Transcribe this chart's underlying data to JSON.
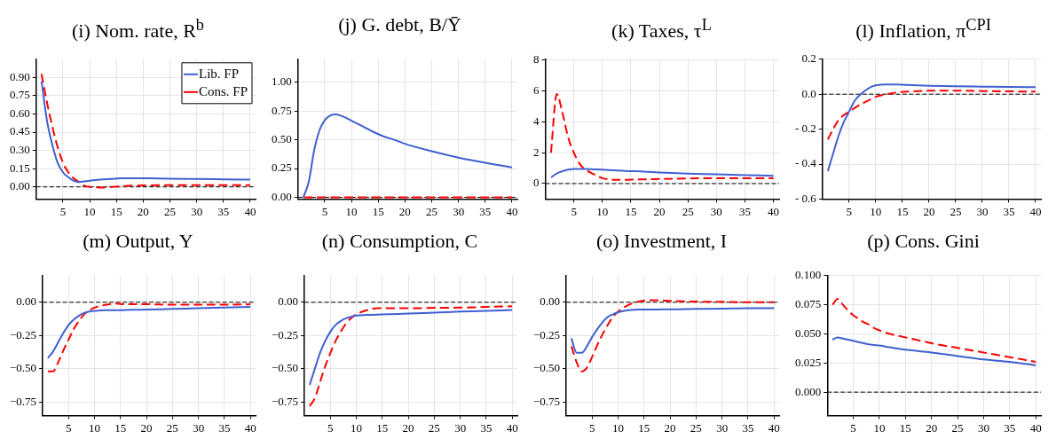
{
  "chart_data": [
    {
      "type": "line",
      "title": "(i) Nom. rate, R$^{b}$",
      "x": [
        1,
        2,
        3,
        4,
        5,
        6,
        7,
        8,
        9,
        10,
        12,
        14,
        16,
        18,
        20,
        25,
        30,
        35,
        40
      ],
      "xlim": [
        0,
        41
      ],
      "xticks": [
        5,
        10,
        15,
        20,
        25,
        30,
        35,
        40
      ],
      "ylim": [
        -0.1,
        1.05
      ],
      "yticks": [
        {
          "value": 0,
          "label": "0.00"
        },
        0.15,
        {
          "value": 0.3,
          "label": "0.30"
        },
        0.45,
        {
          "value": 0.6,
          "label": "0.60"
        },
        0.75,
        {
          "value": 0.9,
          "label": "0.90"
        }
      ],
      "grid": true,
      "legend": "top right",
      "marker": "none",
      "series": [
        {
          "name": "Lib. FP",
          "color": "#3f5fd0",
          "line_style": "solid",
          "values": [
            0.87,
            0.55,
            0.35,
            0.2,
            0.12,
            0.08,
            0.05,
            0.04,
            0.045,
            0.05,
            0.06,
            0.065,
            0.07,
            0.07,
            0.07,
            0.068,
            0.065,
            0.062,
            0.06
          ]
        },
        {
          "name": "Cons. FP",
          "color": "#ff0000",
          "line_style": "dashed",
          "values": [
            0.93,
            0.7,
            0.5,
            0.33,
            0.2,
            0.12,
            0.07,
            0.04,
            0.01,
            0.0,
            -0.005,
            0.0,
            0.005,
            0.01,
            0.012,
            0.015,
            0.015,
            0.015,
            0.015
          ]
        }
      ],
      "ref_lines": [
        {
          "axis": "y",
          "value": 0,
          "color": "#000000",
          "line_style": "dashed"
        }
      ]
    },
    {
      "type": "line",
      "title": "(j) G. debt, B/Ȳ",
      "x": [
        1,
        2,
        3,
        4,
        5,
        6,
        7,
        8,
        9,
        10,
        12,
        14,
        16,
        18,
        20,
        25,
        30,
        35,
        40
      ],
      "xlim": [
        0,
        41
      ],
      "xticks": [
        5,
        10,
        15,
        20,
        25,
        30,
        35,
        40
      ],
      "ylim": [
        -0.015,
        1.2
      ],
      "yticks": [
        {
          "value": 0,
          "label": "0.00"
        },
        0.25,
        {
          "value": 0.5,
          "label": "0.50"
        },
        0.75,
        {
          "value": 1,
          "label": "1.00"
        }
      ],
      "grid": true,
      "marker": "none",
      "series": [
        {
          "color": "#3f5fd0",
          "line_style": "solid",
          "values": [
            0,
            0.13,
            0.4,
            0.58,
            0.67,
            0.71,
            0.72,
            0.71,
            0.69,
            0.665,
            0.62,
            0.57,
            0.53,
            0.5,
            0.465,
            0.4,
            0.345,
            0.3,
            0.26
          ]
        },
        {
          "color": "#ff0000",
          "line_style": "dashed",
          "values": [
            0,
            0,
            0,
            0,
            0,
            0,
            0,
            0,
            0,
            0,
            0,
            0,
            0,
            0,
            0,
            0,
            0,
            0,
            0
          ]
        }
      ],
      "ref_lines": [
        {
          "axis": "y",
          "value": 0,
          "color": "#000000",
          "line_style": "dashed"
        }
      ]
    },
    {
      "type": "line",
      "title": "(k) Taxes, τ$^{L}$",
      "x": [
        1,
        2,
        3,
        4,
        5,
        6,
        7,
        8,
        9,
        10,
        12,
        14,
        16,
        18,
        20,
        25,
        30,
        35,
        40
      ],
      "xlim": [
        0,
        41
      ],
      "xticks": [
        5,
        10,
        15,
        20,
        25,
        30,
        35,
        40
      ],
      "ylim": [
        -1,
        8.05
      ],
      "yticks": [
        0,
        2,
        4,
        6,
        8
      ],
      "grid": true,
      "marker": "none",
      "series": [
        {
          "color": "#3f5fd0",
          "line_style": "solid",
          "values": [
            0.4,
            0.65,
            0.8,
            0.9,
            0.95,
            0.95,
            0.95,
            0.93,
            0.92,
            0.9,
            0.86,
            0.82,
            0.8,
            0.76,
            0.72,
            0.65,
            0.6,
            0.55,
            0.5
          ]
        },
        {
          "color": "#ff0000",
          "line_style": "dashed",
          "values": [
            2.0,
            5.8,
            4.6,
            3.0,
            2.0,
            1.3,
            0.9,
            0.7,
            0.5,
            0.35,
            0.25,
            0.25,
            0.27,
            0.28,
            0.3,
            0.33,
            0.35,
            0.35,
            0.35
          ]
        }
      ],
      "ref_lines": [
        {
          "axis": "y",
          "value": 0,
          "color": "#000000",
          "line_style": "dashed"
        }
      ]
    },
    {
      "type": "line",
      "title": "(l) Inflation, π$^{CPI}$",
      "x": [
        1,
        2,
        3,
        4,
        5,
        6,
        7,
        8,
        9,
        10,
        12,
        14,
        16,
        18,
        20,
        25,
        30,
        35,
        40
      ],
      "xlim": [
        0,
        41
      ],
      "xticks": [
        5,
        10,
        15,
        20,
        25,
        30,
        35,
        40
      ],
      "ylim": [
        -0.6,
        0.2
      ],
      "yticks": [
        {
          "value": -0.6,
          "label": "- 0.6"
        },
        {
          "value": -0.4,
          "label": "- 0.4"
        },
        {
          "value": -0.2,
          "label": "- 0.2"
        },
        {
          "value": 0,
          "label": "0.0"
        },
        0.2
      ],
      "grid": true,
      "marker": "none",
      "series": [
        {
          "color": "#3f5fd0",
          "line_style": "solid",
          "values": [
            -0.44,
            -0.34,
            -0.24,
            -0.16,
            -0.1,
            -0.04,
            -0.005,
            0.02,
            0.04,
            0.05,
            0.055,
            0.055,
            0.053,
            0.05,
            0.048,
            0.045,
            0.043,
            0.041,
            0.04
          ]
        },
        {
          "color": "#ff0000",
          "line_style": "dashed",
          "values": [
            -0.26,
            -0.2,
            -0.15,
            -0.12,
            -0.1,
            -0.08,
            -0.06,
            -0.045,
            -0.03,
            -0.015,
            0.0,
            0.01,
            0.015,
            0.018,
            0.02,
            0.02,
            0.018,
            0.016,
            0.015
          ]
        }
      ],
      "ref_lines": [
        {
          "axis": "y",
          "value": 0,
          "color": "#000000",
          "line_style": "dashed"
        }
      ]
    },
    {
      "type": "line",
      "title": "(m) Output, Y",
      "x": [
        1,
        2,
        3,
        4,
        5,
        6,
        7,
        8,
        9,
        10,
        12,
        14,
        16,
        18,
        20,
        25,
        30,
        35,
        40
      ],
      "xlim": [
        0,
        41
      ],
      "xticks": [
        5,
        10,
        15,
        20,
        25,
        30,
        35,
        40
      ],
      "ylim": [
        -0.85,
        0.2
      ],
      "yticks": [
        {
          "value": -0.75,
          "label": "−0.75"
        },
        {
          "value": -0.5,
          "label": "−0.50"
        },
        {
          "value": -0.25,
          "label": "−0.25"
        },
        {
          "value": 0,
          "label": "0.00"
        }
      ],
      "grid": true,
      "marker": "none",
      "series": [
        {
          "color": "#3f5fd0",
          "line_style": "solid",
          "values": [
            -0.42,
            -0.37,
            -0.3,
            -0.23,
            -0.17,
            -0.13,
            -0.1,
            -0.08,
            -0.07,
            -0.065,
            -0.06,
            -0.06,
            -0.058,
            -0.056,
            -0.055,
            -0.05,
            -0.045,
            -0.04,
            -0.035
          ]
        },
        {
          "color": "#ff0000",
          "line_style": "dashed",
          "values": [
            -0.52,
            -0.52,
            -0.45,
            -0.36,
            -0.28,
            -0.2,
            -0.14,
            -0.09,
            -0.06,
            -0.04,
            -0.02,
            -0.01,
            -0.015,
            -0.015,
            -0.015,
            -0.018,
            -0.018,
            -0.018,
            -0.015
          ]
        }
      ],
      "ref_lines": [
        {
          "axis": "y",
          "value": 0,
          "color": "#000000",
          "line_style": "dashed"
        }
      ]
    },
    {
      "type": "line",
      "title": "(n) Consumption, C",
      "x": [
        1,
        2,
        3,
        4,
        5,
        6,
        7,
        8,
        9,
        10,
        12,
        14,
        16,
        18,
        20,
        25,
        30,
        35,
        40
      ],
      "xlim": [
        0,
        41
      ],
      "xticks": [
        5,
        10,
        15,
        20,
        25,
        30,
        35,
        40
      ],
      "ylim": [
        -0.85,
        0.2
      ],
      "yticks": [
        {
          "value": -0.75,
          "label": "−0.75"
        },
        {
          "value": -0.5,
          "label": "−0.50"
        },
        {
          "value": -0.25,
          "label": "−0.25"
        },
        {
          "value": 0,
          "label": "0.00"
        }
      ],
      "grid": true,
      "marker": "none",
      "series": [
        {
          "color": "#3f5fd0",
          "line_style": "solid",
          "values": [
            -0.62,
            -0.5,
            -0.38,
            -0.29,
            -0.22,
            -0.17,
            -0.14,
            -0.12,
            -0.11,
            -0.1,
            -0.095,
            -0.093,
            -0.09,
            -0.088,
            -0.085,
            -0.078,
            -0.07,
            -0.065,
            -0.058
          ]
        },
        {
          "color": "#ff0000",
          "line_style": "dashed",
          "values": [
            -0.78,
            -0.72,
            -0.6,
            -0.48,
            -0.38,
            -0.29,
            -0.22,
            -0.16,
            -0.12,
            -0.09,
            -0.06,
            -0.045,
            -0.045,
            -0.045,
            -0.045,
            -0.042,
            -0.04,
            -0.035,
            -0.03
          ]
        }
      ],
      "ref_lines": [
        {
          "axis": "y",
          "value": 0,
          "color": "#000000",
          "line_style": "dashed"
        }
      ]
    },
    {
      "type": "line",
      "title": "(o) Investment, I",
      "x": [
        1,
        2,
        3,
        4,
        5,
        6,
        7,
        8,
        9,
        10,
        12,
        14,
        16,
        18,
        20,
        25,
        30,
        35,
        40
      ],
      "xlim": [
        0,
        41
      ],
      "xticks": [
        5,
        10,
        15,
        20,
        25,
        30,
        35,
        40
      ],
      "ylim": [
        -0.85,
        0.2
      ],
      "yticks": [
        {
          "value": -0.75,
          "label": "−0.75"
        },
        {
          "value": -0.5,
          "label": "−0.50"
        },
        {
          "value": -0.25,
          "label": "−0.25"
        },
        {
          "value": 0,
          "label": "0.00"
        }
      ],
      "grid": true,
      "marker": "none",
      "series": [
        {
          "color": "#3f5fd0",
          "line_style": "solid",
          "values": [
            -0.27,
            -0.38,
            -0.38,
            -0.33,
            -0.26,
            -0.2,
            -0.15,
            -0.11,
            -0.09,
            -0.075,
            -0.06,
            -0.055,
            -0.055,
            -0.054,
            -0.053,
            -0.05,
            -0.048,
            -0.045,
            -0.045
          ]
        },
        {
          "color": "#ff0000",
          "line_style": "dashed",
          "values": [
            -0.33,
            -0.45,
            -0.52,
            -0.49,
            -0.41,
            -0.32,
            -0.24,
            -0.17,
            -0.11,
            -0.07,
            -0.02,
            0.005,
            0.015,
            0.015,
            0.01,
            0.005,
            0.003,
            0.0,
            0.0
          ]
        }
      ],
      "ref_lines": [
        {
          "axis": "y",
          "value": 0,
          "color": "#000000",
          "line_style": "dashed"
        }
      ]
    },
    {
      "type": "line",
      "title": "(p) Cons. Gini",
      "x": [
        1,
        2,
        3,
        4,
        5,
        6,
        7,
        8,
        9,
        10,
        12,
        14,
        16,
        18,
        20,
        25,
        30,
        35,
        40
      ],
      "xlim": [
        0,
        41
      ],
      "xticks": [
        5,
        10,
        15,
        20,
        25,
        30,
        35,
        40
      ],
      "ylim": [
        -0.02,
        0.1
      ],
      "yticks": [
        {
          "value": 0,
          "label": "0.000"
        },
        0.025,
        {
          "value": 0.05,
          "label": "0.050"
        },
        0.075,
        {
          "value": 0.1,
          "label": "0.100"
        }
      ],
      "grid": true,
      "marker": "none",
      "series": [
        {
          "color": "#3f5fd0",
          "line_style": "solid",
          "values": [
            0.045,
            0.047,
            0.046,
            0.045,
            0.044,
            0.043,
            0.042,
            0.041,
            0.0405,
            0.04,
            0.0385,
            0.037,
            0.036,
            0.035,
            0.034,
            0.031,
            0.028,
            0.026,
            0.023
          ]
        },
        {
          "color": "#ff0000",
          "line_style": "dashed",
          "values": [
            0.075,
            0.08,
            0.075,
            0.07,
            0.066,
            0.063,
            0.06,
            0.058,
            0.055,
            0.053,
            0.05,
            0.048,
            0.046,
            0.044,
            0.042,
            0.038,
            0.034,
            0.03,
            0.026
          ]
        }
      ],
      "ref_lines": [
        {
          "axis": "y",
          "value": 0,
          "color": "#000000",
          "line_style": "dashed"
        }
      ]
    }
  ]
}
